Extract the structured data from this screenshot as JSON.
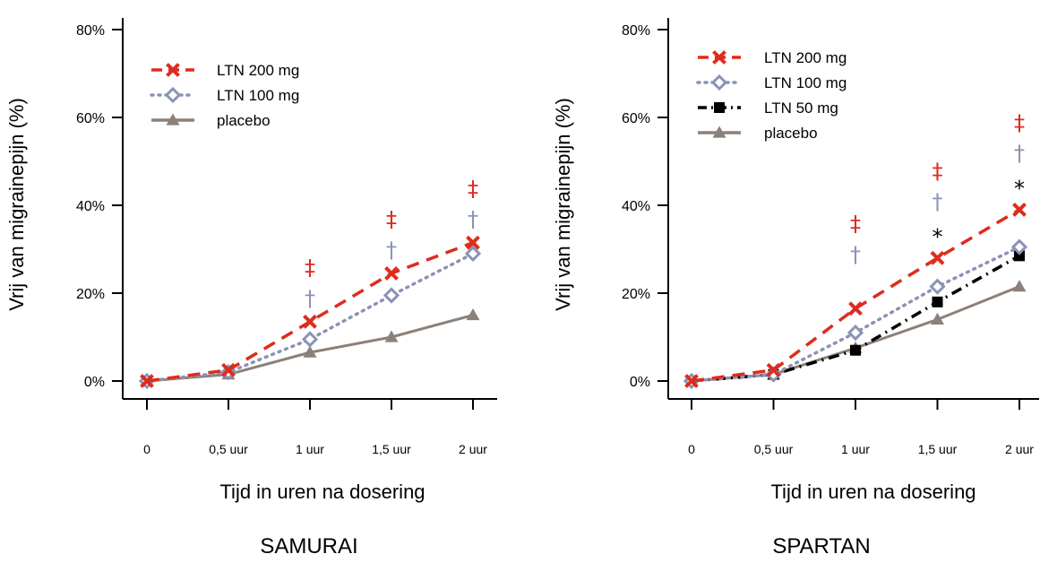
{
  "chart_data": [
    {
      "type": "line",
      "panel_title": "SAMURAI",
      "xlabel": "Tijd in uren na dosering",
      "ylabel": "Vrij van migrainepijn (%)",
      "x": [
        0,
        0.5,
        1,
        1.5,
        2
      ],
      "x_tick_labels": [
        "0",
        "0,5 uur",
        "1 uur",
        "1,5 uur",
        "2 uur"
      ],
      "y_ticks": [
        0,
        20,
        40,
        60,
        80
      ],
      "y_tick_labels": [
        "0%",
        "20%",
        "40%",
        "60%",
        "80%"
      ],
      "ylim": [
        0,
        80
      ],
      "legend_position": "top-left",
      "series": [
        {
          "name": "LTN 200 mg",
          "color": "#dd2c1e",
          "style": "dashed",
          "marker": "x",
          "values": [
            0,
            2.5,
            13.5,
            24.5,
            31.5
          ]
        },
        {
          "name": "LTN 100 mg",
          "color": "#8b93b5",
          "style": "dotted",
          "marker": "open-diamond",
          "values": [
            0,
            2,
            9.5,
            19.5,
            29
          ]
        },
        {
          "name": "placebo",
          "color": "#8c8079",
          "style": "solid",
          "marker": "triangle",
          "values": [
            0,
            1.5,
            6.5,
            10,
            15
          ]
        }
      ],
      "annotations": [
        {
          "symbol": "‡",
          "x": 1,
          "y": 26,
          "color": "#dd2c1e"
        },
        {
          "symbol": "†",
          "x": 1,
          "y": 19,
          "color": "#8b93b5"
        },
        {
          "symbol": "‡",
          "x": 1.5,
          "y": 37,
          "color": "#dd2c1e"
        },
        {
          "symbol": "†",
          "x": 1.5,
          "y": 30,
          "color": "#8b93b5"
        },
        {
          "symbol": "‡",
          "x": 2,
          "y": 44,
          "color": "#dd2c1e"
        },
        {
          "symbol": "†",
          "x": 2,
          "y": 37,
          "color": "#8b93b5"
        }
      ]
    },
    {
      "type": "line",
      "panel_title": "SPARTAN",
      "xlabel": "Tijd in uren na dosering",
      "ylabel": "Vrij van migrainepijn (%)",
      "x": [
        0,
        0.5,
        1,
        1.5,
        2
      ],
      "x_tick_labels": [
        "0",
        "0,5 uur",
        "1 uur",
        "1,5 uur",
        "2 uur"
      ],
      "y_ticks": [
        0,
        20,
        40,
        60,
        80
      ],
      "y_tick_labels": [
        "0%",
        "20%",
        "40%",
        "60%",
        "80%"
      ],
      "ylim": [
        0,
        80
      ],
      "legend_position": "top-left",
      "series": [
        {
          "name": "LTN 200 mg",
          "color": "#dd2c1e",
          "style": "dashed",
          "marker": "x",
          "values": [
            0,
            2.5,
            16.5,
            28,
            39
          ]
        },
        {
          "name": "LTN 100 mg",
          "color": "#8b93b5",
          "style": "dotted",
          "marker": "open-diamond",
          "values": [
            0,
            1.5,
            11,
            21.5,
            30.5
          ]
        },
        {
          "name": "LTN 50 mg",
          "color": "#000000",
          "style": "dashdot",
          "marker": "square",
          "values": [
            0,
            1.5,
            7,
            18,
            28.5
          ]
        },
        {
          "name": "placebo",
          "color": "#8c8079",
          "style": "solid",
          "marker": "triangle",
          "values": [
            0,
            1.5,
            7.5,
            14,
            21.5
          ]
        }
      ],
      "annotations": [
        {
          "symbol": "‡",
          "x": 1,
          "y": 36,
          "color": "#dd2c1e"
        },
        {
          "symbol": "†",
          "x": 1,
          "y": 29,
          "color": "#8b93b5"
        },
        {
          "symbol": "‡",
          "x": 1.5,
          "y": 48,
          "color": "#dd2c1e"
        },
        {
          "symbol": "†",
          "x": 1.5,
          "y": 41,
          "color": "#8b93b5"
        },
        {
          "symbol": "*",
          "x": 1.5,
          "y": 33,
          "color": "#000000"
        },
        {
          "symbol": "‡",
          "x": 2,
          "y": 59,
          "color": "#dd2c1e"
        },
        {
          "symbol": "†",
          "x": 2,
          "y": 52,
          "color": "#8b93b5"
        },
        {
          "symbol": "*",
          "x": 2,
          "y": 44,
          "color": "#000000"
        }
      ]
    }
  ]
}
